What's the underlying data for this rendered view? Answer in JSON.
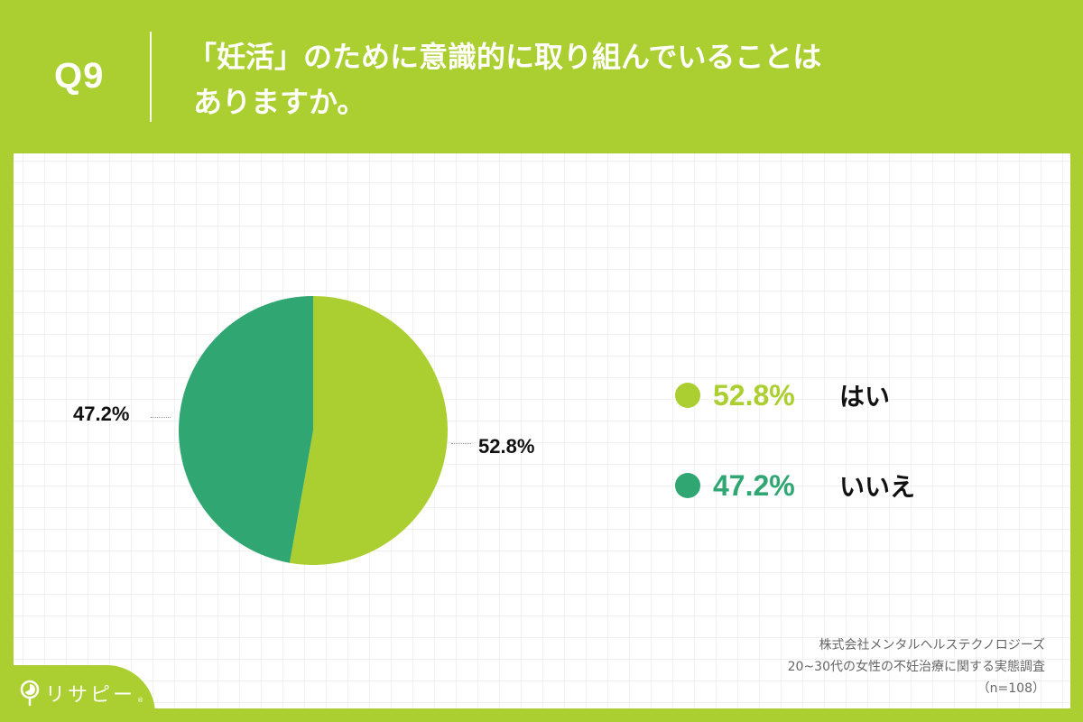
{
  "header": {
    "question_number": "Q9",
    "title_line1": "「妊活」のために意識的に取り組んでいることは",
    "title_line2": "ありますか。"
  },
  "colors": {
    "brand_green": "#abcf31",
    "yes_color": "#abcf31",
    "no_color": "#30a672",
    "white": "#ffffff"
  },
  "chart_data": {
    "type": "pie",
    "title": "「妊活」のために意識的に取り組んでいることはありますか。",
    "categories": [
      "はい",
      "いいえ"
    ],
    "values": [
      52.8,
      47.2
    ],
    "unit": "%",
    "colors": [
      "#abcf31",
      "#30a672"
    ],
    "start_angle_deg": 0,
    "direction": "clockwise",
    "data_labels": [
      "52.8%",
      "47.2%"
    ],
    "legend_position": "right",
    "n": 108
  },
  "pie_labels": {
    "yes": "52.8%",
    "no": "47.2%"
  },
  "legend": [
    {
      "pct": "52.8%",
      "label": "はい",
      "color": "#abcf31"
    },
    {
      "pct": "47.2%",
      "label": "いいえ",
      "color": "#30a672"
    }
  ],
  "source": {
    "company": "株式会社メンタルヘルステクノロジーズ",
    "survey": "20~30代の女性の不妊治療に関する実態調査",
    "sample": "（n=108）"
  },
  "logo": {
    "text": "リサピー",
    "tm": "®"
  }
}
